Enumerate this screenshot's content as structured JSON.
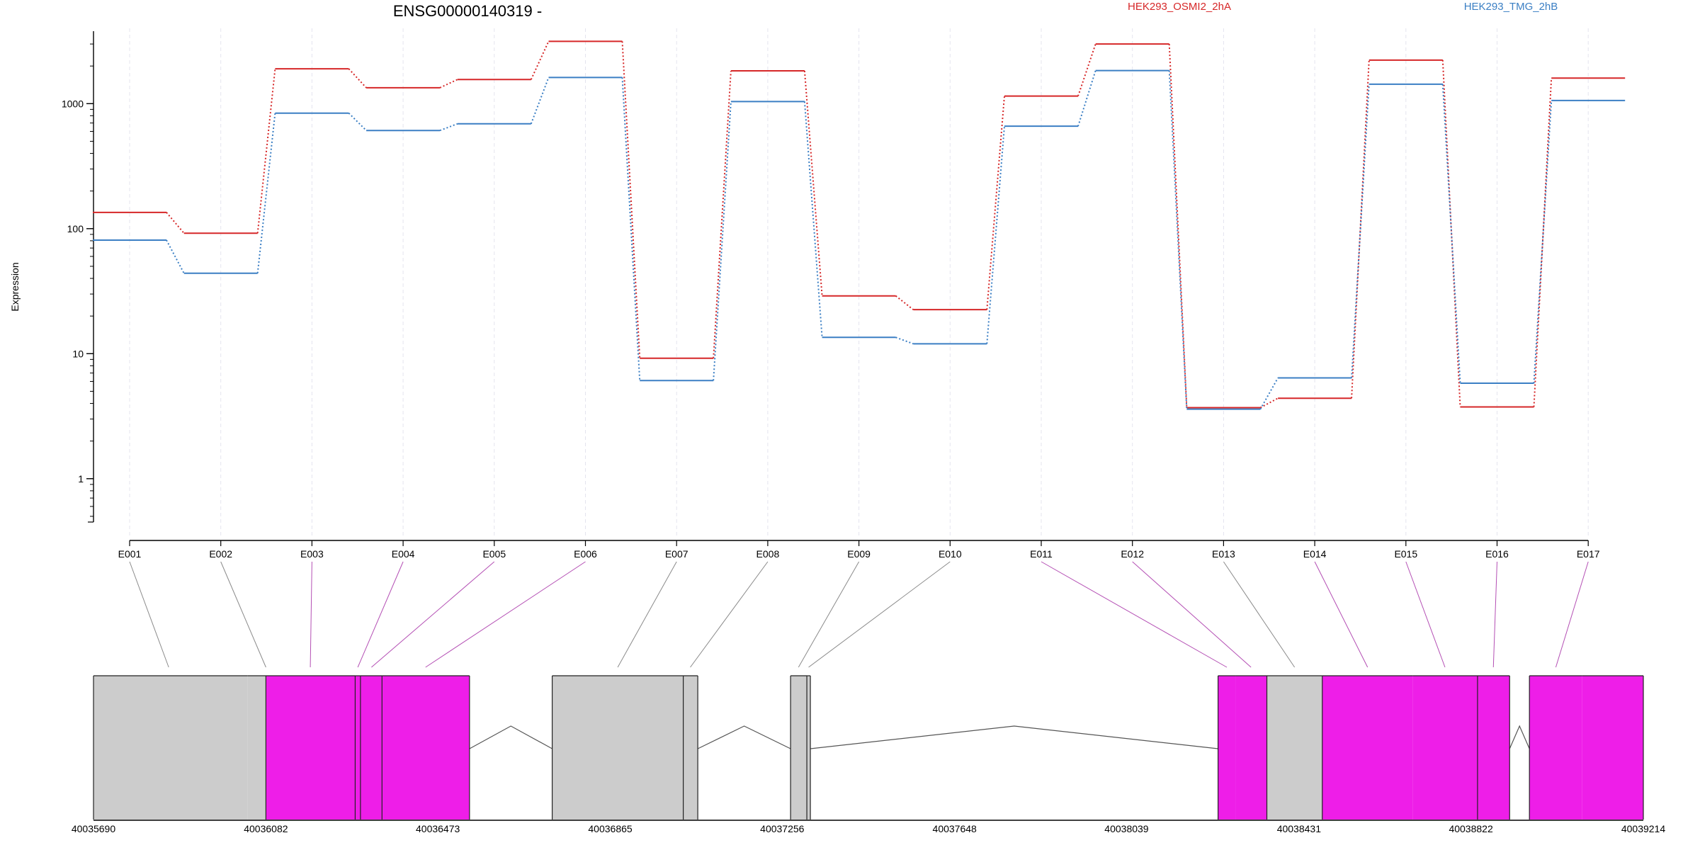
{
  "chart_data": {
    "type": "line",
    "title": "ENSG00000140319 -",
    "ylabel": "Expression",
    "y_scale": "log",
    "ylim": [
      0.45,
      3800
    ],
    "y_ticks": [
      1,
      10,
      100,
      1000
    ],
    "y_tick_labels": [
      "1",
      "10",
      "100",
      "1000"
    ],
    "categories": [
      "E001",
      "E002",
      "E003",
      "E004",
      "E005",
      "E006",
      "E007",
      "E008",
      "E009",
      "E010",
      "E011",
      "E012",
      "E013",
      "E014",
      "E015",
      "E016",
      "E017"
    ],
    "series": [
      {
        "name": "HEK293_OSMI2_2hA",
        "color": "#d62728",
        "values": [
          135,
          92,
          1900,
          1340,
          1560,
          3150,
          9.2,
          1830,
          29,
          22.5,
          1150,
          3000,
          3.7,
          4.4,
          2230,
          3.75,
          1600
        ]
      },
      {
        "name": "HEK293_TMG_2hB",
        "color": "#3b7fc4",
        "values": [
          81,
          44,
          840,
          610,
          690,
          1620,
          6.1,
          1040,
          13.5,
          12,
          660,
          1840,
          3.6,
          6.4,
          1430,
          5.8,
          1060
        ]
      }
    ],
    "gene_model": {
      "coordinates": [
        "40035690",
        "40036082",
        "40036473",
        "40036865",
        "40037256",
        "40037648",
        "40038039",
        "40038431",
        "40038822",
        "40039214"
      ],
      "genomic_range": [
        40035690,
        40039214
      ],
      "segments": [
        {
          "exon": "E001",
          "start": 40035690,
          "end": 40036040,
          "color": "#cccccc"
        },
        {
          "exon": "E002",
          "start": 40036040,
          "end": 40036082,
          "color": "#cccccc"
        },
        {
          "exon": "E003",
          "start": 40036082,
          "end": 40036285,
          "color": "#ee1ee8"
        },
        {
          "exon": "E004",
          "start": 40036285,
          "end": 40036297,
          "color": "#ee1ee8"
        },
        {
          "exon": "E005",
          "start": 40036297,
          "end": 40036346,
          "color": "#ee1ee8"
        },
        {
          "exon": "E006",
          "start": 40036346,
          "end": 40036545,
          "color": "#ee1ee8"
        },
        {
          "exon": "E007",
          "start": 40036733,
          "end": 40037031,
          "color": "#cccccc"
        },
        {
          "exon": "E008",
          "start": 40037031,
          "end": 40037064,
          "color": "#cccccc"
        },
        {
          "exon": "E009",
          "start": 40037275,
          "end": 40037312,
          "color": "#cccccc"
        },
        {
          "exon": "E010",
          "start": 40037312,
          "end": 40037320,
          "color": "#cccccc"
        },
        {
          "exon": "E011",
          "start": 40038247,
          "end": 40038287,
          "color": "#ee1ee8"
        },
        {
          "exon": "E012",
          "start": 40038287,
          "end": 40038358,
          "color": "#ee1ee8"
        },
        {
          "exon": "E013",
          "start": 40038358,
          "end": 40038484,
          "color": "#cccccc"
        },
        {
          "exon": "E014",
          "start": 40038484,
          "end": 40038690,
          "color": "#ee1ee8"
        },
        {
          "exon": "E015",
          "start": 40038690,
          "end": 40038837,
          "color": "#ee1ee8"
        },
        {
          "exon": "E016",
          "start": 40038837,
          "end": 40038910,
          "color": "#ee1ee8"
        },
        {
          "exon": "E017",
          "start": 40038955,
          "end": 40039075,
          "color": "#ee1ee8"
        },
        {
          "exon": "E017",
          "start": 40039075,
          "end": 40039214,
          "color": "#ee1ee8"
        }
      ],
      "introns": [
        [
          40036545,
          40036733
        ],
        [
          40037064,
          40037275
        ],
        [
          40037320,
          40038247
        ],
        [
          40038910,
          40038955
        ]
      ],
      "block_boundaries": [
        40035690,
        40036082,
        40036285,
        40036297,
        40036346,
        40036545,
        40036733,
        40037031,
        40037064,
        40037275,
        40037312,
        40037320,
        40038247,
        40038358,
        40038484,
        40038837,
        40038910,
        40038955,
        40039214
      ],
      "connector_targets": [
        40035861,
        40036082,
        40036183,
        40036291,
        40036322,
        40036445,
        40036882,
        40037047,
        40037293,
        40037316,
        40038267,
        40038322,
        40038421,
        40038587,
        40038763,
        40038873,
        40039015
      ]
    }
  }
}
